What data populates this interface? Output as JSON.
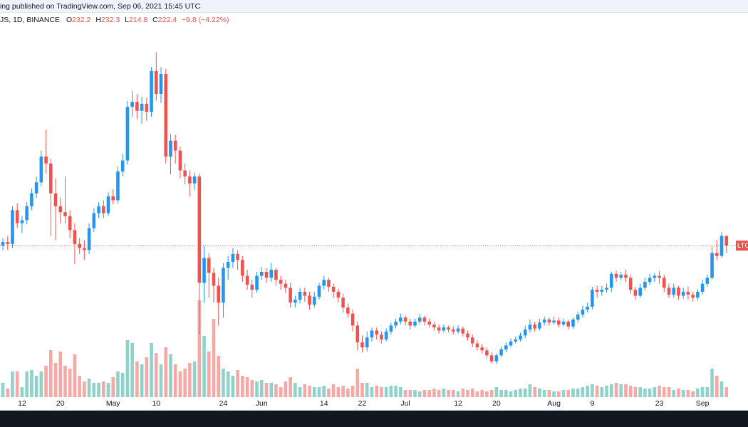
{
  "chart_data": {
    "type": "candlestick",
    "header": "ing published on TradingView.com, Sep 06, 2021 15:45 UTC",
    "symbol": "JS, 1D, BINANCE",
    "ohlc_labels": [
      "O",
      "H",
      "L",
      "C"
    ],
    "change_label": "−9.8 (−4.22%)",
    "price_label": "LTC",
    "up_color": "#2196f3",
    "down_color": "#ef5350",
    "volume_up_color": "#8ed3cb",
    "volume_down_color": "#f5a8a6",
    "xlim": [
      -0.6,
      155.5
    ],
    "ylim": [
      70,
      448
    ],
    "xticks": [
      {
        "value": 4,
        "label": "12"
      },
      {
        "value": 12,
        "label": "20"
      },
      {
        "value": 23,
        "label": "May"
      },
      {
        "value": 32,
        "label": "10"
      },
      {
        "value": 46,
        "label": "24"
      },
      {
        "value": 54,
        "label": "Jun"
      },
      {
        "value": 67,
        "label": "14"
      },
      {
        "value": 75,
        "label": "22"
      },
      {
        "value": 84,
        "label": "Jul"
      },
      {
        "value": 95,
        "label": "12"
      },
      {
        "value": 103,
        "label": "20"
      },
      {
        "value": 115,
        "label": "Aug"
      },
      {
        "value": 123,
        "label": "9"
      },
      {
        "value": 137,
        "label": "23"
      },
      {
        "value": 146,
        "label": "Sep"
      }
    ],
    "open": [
      222.4,
      226,
      224,
      258,
      245,
      248,
      262,
      275,
      286,
      312,
      305,
      275,
      262,
      256,
      252,
      238,
      224,
      220,
      218,
      240,
      255,
      262,
      255,
      272,
      268,
      297,
      308,
      362,
      367,
      358,
      365,
      357,
      398,
      375,
      395,
      312,
      328,
      318,
      298,
      292,
      285,
      292,
      185,
      210,
      195,
      182,
      165,
      200,
      206,
      214,
      208,
      192,
      183,
      178,
      192,
      196,
      190,
      198,
      188,
      184,
      180,
      165,
      168,
      176,
      172,
      163,
      171,
      182,
      188,
      181,
      176,
      170,
      160,
      154,
      142,
      125,
      120,
      130,
      137,
      133,
      128,
      136,
      142,
      146,
      150,
      146,
      142,
      146,
      150,
      146,
      143,
      140,
      137,
      140,
      138,
      136,
      139,
      134,
      130,
      124,
      120,
      117,
      112,
      106,
      112,
      118,
      122,
      126,
      128,
      132,
      138,
      143,
      139,
      145,
      148,
      145,
      147,
      143,
      146,
      141,
      148,
      153,
      158,
      161,
      178,
      176,
      178,
      180,
      194,
      190,
      193,
      190,
      178,
      172,
      180,
      186,
      190,
      192,
      190,
      180,
      173,
      180,
      172,
      176,
      173,
      170,
      176,
      184,
      190,
      215,
      212,
      232.2
    ],
    "high": [
      229.5,
      232,
      262,
      265,
      252,
      266,
      280,
      292,
      318,
      339,
      310,
      290,
      270,
      292,
      258,
      245,
      230,
      228,
      245,
      260,
      266,
      268,
      276,
      279,
      302,
      315,
      368,
      378,
      375,
      372,
      371,
      402,
      417,
      402,
      400,
      335,
      334,
      322,
      305,
      298,
      296,
      295,
      222,
      215,
      200,
      190,
      205,
      212,
      220,
      218,
      212,
      198,
      188,
      196,
      201,
      200,
      205,
      200,
      192,
      188,
      185,
      172,
      180,
      180,
      176,
      176,
      185,
      192,
      190,
      184,
      179,
      174,
      164,
      158,
      146,
      132,
      136,
      140,
      140,
      136,
      139,
      145,
      149,
      154,
      152,
      149,
      149,
      154,
      152,
      149,
      146,
      143,
      143,
      142,
      141,
      142,
      141,
      137,
      133,
      127,
      123,
      120,
      115,
      114,
      121,
      125,
      129,
      131,
      135,
      142,
      148,
      146,
      149,
      151,
      150,
      151,
      150,
      149,
      148,
      150,
      156,
      162,
      165,
      181,
      182,
      182,
      184,
      196,
      197,
      196,
      198,
      193,
      181,
      184,
      190,
      194,
      195,
      197,
      193,
      184,
      184,
      182,
      180,
      181,
      176,
      179,
      188,
      193,
      222,
      228,
      236,
      232.3
    ],
    "low": [
      217.4,
      218,
      220,
      240,
      235,
      244,
      258,
      270,
      282,
      295,
      232,
      228,
      245,
      245,
      230,
      204,
      214,
      208,
      214,
      236,
      250,
      250,
      252,
      264,
      265,
      292,
      304,
      352,
      350,
      345,
      348,
      352,
      368,
      366,
      305,
      294,
      305,
      290,
      284,
      272,
      278,
      133,
      165,
      170,
      165,
      142,
      150,
      188,
      200,
      198,
      186,
      178,
      170,
      175,
      188,
      185,
      186,
      182,
      178,
      175,
      160,
      160,
      164,
      166,
      158,
      160,
      168,
      178,
      176,
      170,
      165,
      155,
      150,
      136,
      117,
      115,
      116,
      126,
      128,
      124,
      126,
      133,
      139,
      143,
      142,
      138,
      140,
      143,
      142,
      140,
      137,
      134,
      135,
      135,
      133,
      134,
      131,
      127,
      120,
      117,
      114,
      109,
      104,
      103,
      110,
      115,
      120,
      124,
      126,
      129,
      135,
      136,
      137,
      142,
      142,
      143,
      140,
      141,
      138,
      139,
      145,
      150,
      155,
      158,
      170,
      172,
      175,
      176,
      186,
      188,
      186,
      174,
      168,
      170,
      177,
      183,
      186,
      184,
      176,
      170,
      170,
      168,
      169,
      168,
      166,
      167,
      173,
      181,
      188,
      208,
      210,
      214.8
    ],
    "close": [
      226,
      224,
      258,
      245,
      248,
      262,
      275,
      286,
      312,
      305,
      275,
      262,
      256,
      252,
      238,
      224,
      220,
      218,
      240,
      255,
      262,
      255,
      272,
      268,
      297,
      308,
      362,
      367,
      358,
      365,
      357,
      398,
      375,
      395,
      312,
      328,
      318,
      298,
      292,
      285,
      292,
      185,
      210,
      195,
      182,
      165,
      200,
      206,
      214,
      208,
      192,
      183,
      178,
      192,
      196,
      190,
      198,
      188,
      184,
      180,
      165,
      168,
      176,
      172,
      163,
      171,
      182,
      188,
      181,
      176,
      170,
      160,
      154,
      142,
      125,
      120,
      130,
      137,
      133,
      128,
      136,
      142,
      146,
      150,
      146,
      142,
      146,
      150,
      146,
      143,
      140,
      137,
      140,
      138,
      136,
      139,
      134,
      130,
      124,
      120,
      117,
      112,
      106,
      112,
      118,
      122,
      126,
      128,
      132,
      138,
      143,
      139,
      145,
      148,
      145,
      147,
      143,
      146,
      141,
      148,
      153,
      158,
      161,
      178,
      176,
      178,
      180,
      194,
      190,
      193,
      190,
      178,
      172,
      180,
      186,
      190,
      192,
      190,
      180,
      173,
      180,
      172,
      176,
      173,
      170,
      176,
      184,
      190,
      215,
      212,
      232.2,
      222.4
    ],
    "volume": [
      20,
      12,
      36,
      36,
      14,
      36,
      38,
      30,
      36,
      44,
      66,
      48,
      64,
      44,
      40,
      60,
      30,
      22,
      26,
      20,
      20,
      22,
      20,
      28,
      36,
      34,
      80,
      76,
      50,
      46,
      56,
      76,
      62,
      46,
      70,
      60,
      46,
      36,
      40,
      48,
      50,
      136,
      86,
      64,
      110,
      58,
      40,
      36,
      30,
      38,
      30,
      28,
      24,
      22,
      24,
      20,
      20,
      18,
      14,
      22,
      28,
      20,
      14,
      18,
      16,
      14,
      14,
      16,
      12,
      18,
      14,
      16,
      12,
      16,
      40,
      20,
      20,
      14,
      16,
      14,
      14,
      16,
      16,
      14,
      10,
      10,
      10,
      8,
      10,
      10,
      12,
      10,
      12,
      10,
      10,
      8,
      12,
      10,
      12,
      8,
      10,
      8,
      10,
      14,
      10,
      10,
      8,
      10,
      12,
      12,
      18,
      14,
      12,
      10,
      10,
      8,
      8,
      10,
      10,
      12,
      12,
      14,
      16,
      18,
      16,
      14,
      16,
      18,
      20,
      18,
      18,
      16,
      14,
      14,
      12,
      12,
      14,
      16,
      14,
      14,
      10,
      12,
      10,
      10,
      8,
      12,
      14,
      14,
      40,
      30,
      22,
      14
    ]
  }
}
